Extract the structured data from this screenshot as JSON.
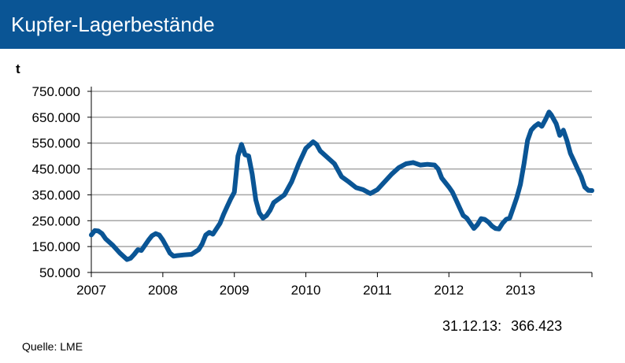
{
  "header": {
    "title": "Kupfer-Lagerbestände",
    "background": "#0a5595"
  },
  "footer": {
    "last_label": "31.12.13:",
    "last_value": "366.423",
    "source": "Quelle:  LME"
  },
  "chart_data": {
    "type": "line",
    "title": "Kupfer-Lagerbestände",
    "ylabel": "t",
    "ylim": [
      50000,
      750000
    ],
    "xlim": [
      2007.0,
      2014.0
    ],
    "yticks": [
      750000,
      650000,
      550000,
      450000,
      350000,
      250000,
      150000,
      50000
    ],
    "ytick_labels": [
      "750.000",
      "650.000",
      "550.000",
      "450.000",
      "350.000",
      "250.000",
      "150.000",
      "50.000"
    ],
    "xticks": [
      2007,
      2008,
      2009,
      2010,
      2011,
      2012,
      2013
    ],
    "xtick_labels": [
      "2007",
      "2008",
      "2009",
      "2010",
      "2011",
      "2012",
      "2013"
    ],
    "grid": true,
    "line_color": "#0a5595",
    "series": [
      {
        "name": "",
        "x": [
          2007.0,
          2007.05,
          2007.1,
          2007.15,
          2007.2,
          2007.3,
          2007.4,
          2007.5,
          2007.55,
          2007.6,
          2007.65,
          2007.7,
          2007.8,
          2007.85,
          2007.9,
          2007.95,
          2008.0,
          2008.05,
          2008.1,
          2008.15,
          2008.2,
          2008.3,
          2008.4,
          2008.5,
          2008.55,
          2008.6,
          2008.65,
          2008.7,
          2008.8,
          2008.85,
          2008.9,
          2008.95,
          2009.0,
          2009.05,
          2009.1,
          2009.15,
          2009.2,
          2009.25,
          2009.3,
          2009.35,
          2009.4,
          2009.45,
          2009.5,
          2009.55,
          2009.6,
          2009.7,
          2009.8,
          2009.9,
          2010.0,
          2010.1,
          2010.15,
          2010.2,
          2010.3,
          2010.4,
          2010.5,
          2010.6,
          2010.7,
          2010.8,
          2010.9,
          2011.0,
          2011.1,
          2011.2,
          2011.3,
          2011.4,
          2011.5,
          2011.6,
          2011.7,
          2011.8,
          2011.85,
          2011.9,
          2012.0,
          2012.05,
          2012.1,
          2012.15,
          2012.2,
          2012.25,
          2012.3,
          2012.35,
          2012.4,
          2012.45,
          2012.5,
          2012.55,
          2012.6,
          2012.65,
          2012.7,
          2012.75,
          2012.8,
          2012.85,
          2012.9,
          2012.95,
          2013.0,
          2013.05,
          2013.1,
          2013.15,
          2013.2,
          2013.25,
          2013.3,
          2013.35,
          2013.4,
          2013.43,
          2013.46,
          2013.5,
          2013.55,
          2013.6,
          2013.65,
          2013.7,
          2013.75,
          2013.8,
          2013.85,
          2013.9,
          2013.95,
          2014.0
        ],
        "values": [
          195000,
          212000,
          210000,
          200000,
          180000,
          155000,
          125000,
          100000,
          105000,
          120000,
          138000,
          135000,
          175000,
          192000,
          200000,
          195000,
          175000,
          150000,
          125000,
          113000,
          115000,
          118000,
          120000,
          138000,
          160000,
          195000,
          205000,
          198000,
          240000,
          275000,
          305000,
          335000,
          360000,
          500000,
          545000,
          505000,
          500000,
          430000,
          330000,
          280000,
          260000,
          270000,
          290000,
          320000,
          330000,
          350000,
          400000,
          470000,
          530000,
          555000,
          545000,
          520000,
          495000,
          470000,
          420000,
          400000,
          378000,
          370000,
          355000,
          370000,
          400000,
          430000,
          455000,
          470000,
          475000,
          465000,
          468000,
          465000,
          450000,
          415000,
          380000,
          360000,
          330000,
          300000,
          270000,
          260000,
          240000,
          220000,
          235000,
          258000,
          255000,
          245000,
          230000,
          220000,
          218000,
          240000,
          255000,
          260000,
          300000,
          340000,
          390000,
          470000,
          560000,
          600000,
          615000,
          625000,
          615000,
          640000,
          670000,
          660000,
          645000,
          625000,
          580000,
          600000,
          560000,
          510000,
          480000,
          450000,
          420000,
          380000,
          367000,
          366423
        ]
      }
    ]
  }
}
